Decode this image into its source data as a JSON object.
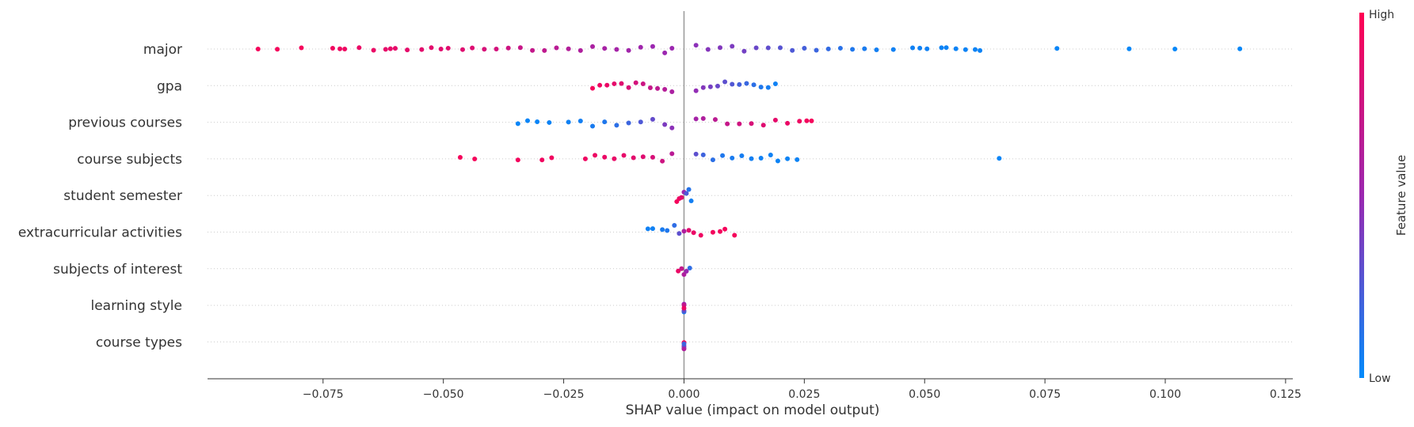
{
  "chart_data": {
    "type": "scatter",
    "subtype": "shap-beeswarm",
    "xlabel": "SHAP value (impact on model output)",
    "xlim": [
      -0.099,
      0.1265
    ],
    "xticks": [
      "−0.075",
      "−0.050",
      "−0.025",
      "0.000",
      "0.025",
      "0.050",
      "0.075",
      "0.100",
      "0.125"
    ],
    "xtick_values": [
      -0.075,
      -0.05,
      -0.025,
      0.0,
      0.025,
      0.05,
      0.075,
      0.1,
      0.125
    ],
    "features": [
      "major",
      "gpa",
      "previous courses",
      "course subjects",
      "student semester",
      "extracurricular activities",
      "subjects of interest",
      "learning style",
      "course types"
    ],
    "colorbar": {
      "label": "Feature value",
      "high_label": "High",
      "low_label": "Low",
      "high_color": "#ff0052",
      "low_color": "#008bfb",
      "mid_color": "#9b27b0"
    },
    "zero_line_color": "#999999",
    "series": [
      {
        "feature": "major",
        "points": [
          [
            -0.0885,
            0.95
          ],
          [
            -0.0845,
            0.95
          ],
          [
            -0.0795,
            0.95
          ],
          [
            -0.073,
            0.93
          ],
          [
            -0.0715,
            0.92
          ],
          [
            -0.0705,
            0.92
          ],
          [
            -0.0675,
            0.9
          ],
          [
            -0.0645,
            0.9
          ],
          [
            -0.062,
            0.88
          ],
          [
            -0.061,
            0.88
          ],
          [
            -0.06,
            0.88
          ],
          [
            -0.0575,
            0.87
          ],
          [
            -0.0545,
            0.86
          ],
          [
            -0.0525,
            0.86
          ],
          [
            -0.0505,
            0.85
          ],
          [
            -0.049,
            0.85
          ],
          [
            -0.046,
            0.84
          ],
          [
            -0.044,
            0.83
          ],
          [
            -0.0415,
            0.8
          ],
          [
            -0.039,
            0.78
          ],
          [
            -0.0365,
            0.75
          ],
          [
            -0.034,
            0.72
          ],
          [
            -0.0315,
            0.7
          ],
          [
            -0.029,
            0.68
          ],
          [
            -0.0265,
            0.65
          ],
          [
            -0.024,
            0.62
          ],
          [
            -0.0215,
            0.6
          ],
          [
            -0.019,
            0.58
          ],
          [
            -0.0165,
            0.56
          ],
          [
            -0.014,
            0.55
          ],
          [
            -0.0115,
            0.53
          ],
          [
            -0.009,
            0.52
          ],
          [
            -0.0065,
            0.5
          ],
          [
            -0.004,
            0.5
          ],
          [
            -0.0025,
            0.5
          ],
          [
            0.0025,
            0.45
          ],
          [
            0.005,
            0.43
          ],
          [
            0.0075,
            0.42
          ],
          [
            0.01,
            0.4
          ],
          [
            0.0125,
            0.37
          ],
          [
            0.015,
            0.34
          ],
          [
            0.0175,
            0.31
          ],
          [
            0.02,
            0.28
          ],
          [
            0.0225,
            0.25
          ],
          [
            0.025,
            0.22
          ],
          [
            0.0275,
            0.19
          ],
          [
            0.03,
            0.16
          ],
          [
            0.0325,
            0.13
          ],
          [
            0.035,
            0.1
          ],
          [
            0.0375,
            0.08
          ],
          [
            0.04,
            0.06
          ],
          [
            0.0435,
            0.05
          ],
          [
            0.0475,
            0.05
          ],
          [
            0.049,
            0.05
          ],
          [
            0.0505,
            0.05
          ],
          [
            0.0535,
            0.04
          ],
          [
            0.0545,
            0.04
          ],
          [
            0.0565,
            0.04
          ],
          [
            0.0585,
            0.04
          ],
          [
            0.0605,
            0.04
          ],
          [
            0.0615,
            0.04
          ],
          [
            0.0775,
            0.03
          ],
          [
            0.0925,
            0.02
          ],
          [
            0.102,
            0.02
          ],
          [
            0.1155,
            0.02
          ]
        ]
      },
      {
        "feature": "gpa",
        "points": [
          [
            -0.019,
            0.95
          ],
          [
            -0.0175,
            0.92
          ],
          [
            -0.016,
            0.9
          ],
          [
            -0.0145,
            0.87
          ],
          [
            -0.013,
            0.84
          ],
          [
            -0.0115,
            0.81
          ],
          [
            -0.01,
            0.78
          ],
          [
            -0.0085,
            0.74
          ],
          [
            -0.007,
            0.71
          ],
          [
            -0.0055,
            0.67
          ],
          [
            -0.004,
            0.63
          ],
          [
            -0.0025,
            0.58
          ],
          [
            0.0025,
            0.47
          ],
          [
            0.004,
            0.42
          ],
          [
            0.0055,
            0.38
          ],
          [
            0.007,
            0.34
          ],
          [
            0.0085,
            0.3
          ],
          [
            0.01,
            0.26
          ],
          [
            0.0115,
            0.22
          ],
          [
            0.013,
            0.18
          ],
          [
            0.0145,
            0.14
          ],
          [
            0.016,
            0.1
          ],
          [
            0.0175,
            0.07
          ],
          [
            0.019,
            0.05
          ]
        ]
      },
      {
        "feature": "previous courses",
        "points": [
          [
            -0.0345,
            0.03
          ],
          [
            -0.0325,
            0.03
          ],
          [
            -0.0305,
            0.03
          ],
          [
            -0.028,
            0.04
          ],
          [
            -0.024,
            0.05
          ],
          [
            -0.0215,
            0.06
          ],
          [
            -0.019,
            0.08
          ],
          [
            -0.0165,
            0.1
          ],
          [
            -0.014,
            0.14
          ],
          [
            -0.0115,
            0.19
          ],
          [
            -0.009,
            0.25
          ],
          [
            -0.0065,
            0.32
          ],
          [
            -0.004,
            0.4
          ],
          [
            -0.0025,
            0.45
          ],
          [
            0.0025,
            0.55
          ],
          [
            0.004,
            0.6
          ],
          [
            0.0065,
            0.66
          ],
          [
            0.009,
            0.71
          ],
          [
            0.0115,
            0.76
          ],
          [
            0.014,
            0.8
          ],
          [
            0.0165,
            0.84
          ],
          [
            0.019,
            0.87
          ],
          [
            0.0215,
            0.9
          ],
          [
            0.024,
            0.92
          ],
          [
            0.0255,
            0.94
          ],
          [
            0.0265,
            0.95
          ]
        ]
      },
      {
        "feature": "course subjects",
        "points": [
          [
            -0.0465,
            0.95
          ],
          [
            -0.0435,
            0.95
          ],
          [
            -0.0345,
            0.94
          ],
          [
            -0.0295,
            0.93
          ],
          [
            -0.0275,
            0.93
          ],
          [
            -0.0205,
            0.92
          ],
          [
            -0.0185,
            0.91
          ],
          [
            -0.0165,
            0.9
          ],
          [
            -0.0145,
            0.89
          ],
          [
            -0.0125,
            0.88
          ],
          [
            -0.0105,
            0.86
          ],
          [
            -0.0085,
            0.84
          ],
          [
            -0.0065,
            0.8
          ],
          [
            -0.0045,
            0.75
          ],
          [
            -0.0025,
            0.65
          ],
          [
            0.0025,
            0.3
          ],
          [
            0.004,
            0.2
          ],
          [
            0.006,
            0.14
          ],
          [
            0.008,
            0.1
          ],
          [
            0.01,
            0.08
          ],
          [
            0.012,
            0.07
          ],
          [
            0.014,
            0.06
          ],
          [
            0.016,
            0.05
          ],
          [
            0.018,
            0.05
          ],
          [
            0.0195,
            0.04
          ],
          [
            0.0215,
            0.04
          ],
          [
            0.0235,
            0.04
          ],
          [
            0.0655,
            0.03
          ]
        ]
      },
      {
        "feature": "student semester",
        "points": [
          [
            -0.0015,
            0.95
          ],
          [
            -0.001,
            0.92
          ],
          [
            -0.0005,
            0.85
          ],
          [
            0.0,
            0.5
          ],
          [
            0.0005,
            0.25
          ],
          [
            0.001,
            0.12
          ],
          [
            0.0015,
            0.06
          ]
        ]
      },
      {
        "feature": "extracurricular activities",
        "points": [
          [
            -0.0075,
            0.05
          ],
          [
            -0.0065,
            0.05
          ],
          [
            -0.0045,
            0.08
          ],
          [
            -0.0035,
            0.1
          ],
          [
            -0.002,
            0.15
          ],
          [
            -0.001,
            0.3
          ],
          [
            0.0,
            0.6
          ],
          [
            0.001,
            0.85
          ],
          [
            0.002,
            0.9
          ],
          [
            0.0035,
            0.92
          ],
          [
            0.006,
            0.94
          ],
          [
            0.0075,
            0.94
          ],
          [
            0.0085,
            0.95
          ],
          [
            0.0105,
            0.95
          ]
        ]
      },
      {
        "feature": "subjects of interest",
        "points": [
          [
            -0.0012,
            0.9
          ],
          [
            -0.0005,
            0.7
          ],
          [
            0.0,
            0.6
          ],
          [
            0.0005,
            0.5
          ],
          [
            0.0012,
            0.15
          ]
        ]
      },
      {
        "feature": "learning style",
        "points": [
          [
            0.0,
            0.1
          ],
          [
            0.0,
            0.3
          ],
          [
            0.0,
            0.5
          ],
          [
            0.0,
            0.7
          ],
          [
            0.0,
            0.9
          ]
        ]
      },
      {
        "feature": "course types",
        "points": [
          [
            0.0,
            0.5
          ],
          [
            0.0,
            0.3
          ],
          [
            0.0,
            0.95
          ],
          [
            0.0,
            0.6
          ],
          [
            0.0,
            0.2
          ]
        ]
      }
    ]
  }
}
